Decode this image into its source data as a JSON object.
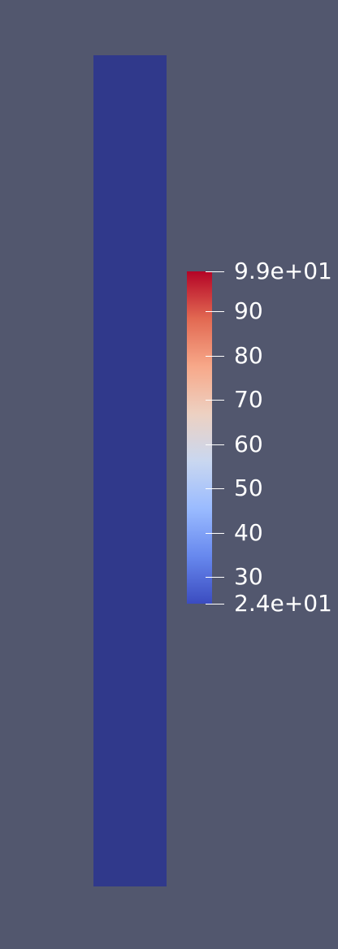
{
  "colors": {
    "background": "#52576e",
    "mesh_surface": "#30398b",
    "label_color": "#ffffff"
  },
  "field": {
    "uniform_value": 24
  },
  "colorbar": {
    "colormap": "cool-to-warm",
    "range": [
      24,
      99
    ],
    "stops": [
      "#3b4cc0",
      "#6788ee",
      "#9abbff",
      "#c9d7f0",
      "#edd1c2",
      "#f7a889",
      "#e26952",
      "#b40426"
    ],
    "ticks": [
      {
        "value": 99,
        "label": "9.9e+01"
      },
      {
        "value": 90,
        "label": "90"
      },
      {
        "value": 80,
        "label": "80"
      },
      {
        "value": 70,
        "label": "70"
      },
      {
        "value": 60,
        "label": "60"
      },
      {
        "value": 50,
        "label": "50"
      },
      {
        "value": 40,
        "label": "40"
      },
      {
        "value": 30,
        "label": "30"
      },
      {
        "value": 24,
        "label": "2.4e+01"
      }
    ]
  }
}
